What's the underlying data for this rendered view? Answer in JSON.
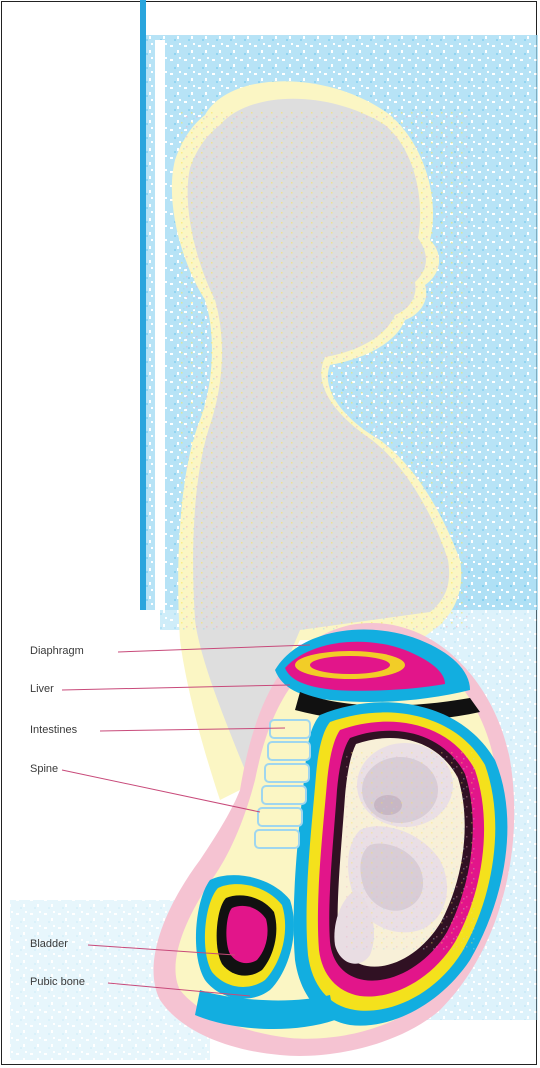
{
  "figure": {
    "labels": [
      {
        "key": "diaphragm",
        "text": "Diaphragm"
      },
      {
        "key": "liver",
        "text": "Liver"
      },
      {
        "key": "intestines",
        "text": "Intestines"
      },
      {
        "key": "spine",
        "text": "Spine"
      },
      {
        "key": "bladder",
        "text": "Bladder"
      },
      {
        "key": "pubic-bone",
        "text": "Pubic bone"
      }
    ],
    "colors": {
      "background_blue": "#8fd3f0",
      "silhouette_gray": "#dedede",
      "skin_yellow": "#fbf6c4",
      "skin_pink": "#f5c3d2",
      "accent_cyan": "#12aee0",
      "accent_magenta": "#e2158a",
      "accent_yellow": "#f4e11c",
      "dark": "#111111"
    }
  }
}
